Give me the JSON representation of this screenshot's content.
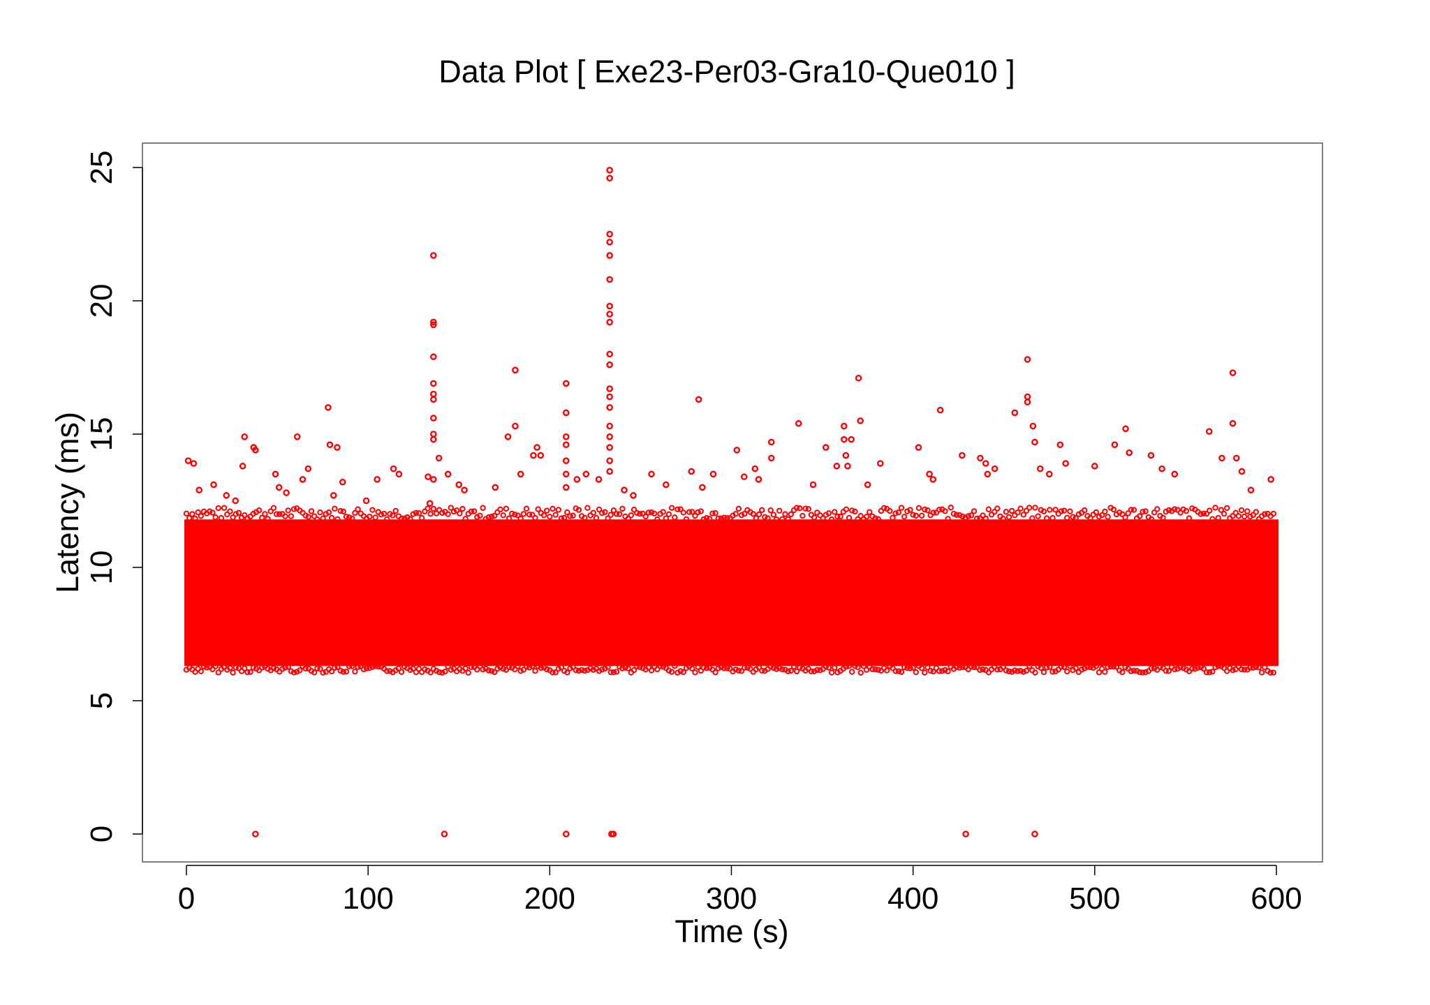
{
  "colors": {
    "point": "#ff0000",
    "axis": "#000000",
    "frame": "#555555",
    "background": "#ffffff"
  },
  "chart_data": {
    "type": "scatter",
    "title": "Data Plot [ Exe23-Per03-Gra10-Que010 ]",
    "xlabel": "Time (s)",
    "ylabel": "Latency (ms)",
    "xlim": [
      0,
      600
    ],
    "ylim": [
      0,
      25
    ],
    "x_ticks": [
      0,
      100,
      200,
      300,
      400,
      500,
      600
    ],
    "x_tick_labels": [
      "0",
      "100",
      "200",
      "300",
      "400",
      "500",
      "600"
    ],
    "y_ticks": [
      0,
      5,
      10,
      15,
      20,
      25
    ],
    "y_tick_labels": [
      "0",
      "5",
      "10",
      "15",
      "20",
      "25"
    ],
    "grid": false,
    "legend": "none",
    "marker": "open-circle",
    "series": [
      {
        "color": "#ff0000",
        "dense_band": {
          "x_range": [
            0,
            600
          ],
          "y_range": [
            6.3,
            11.8
          ]
        },
        "points": [
          [
            1,
            14.0
          ],
          [
            4,
            13.9
          ],
          [
            7,
            12.9
          ],
          [
            15,
            13.1
          ],
          [
            22,
            12.7
          ],
          [
            27,
            12.5
          ],
          [
            31,
            13.8
          ],
          [
            32,
            14.9
          ],
          [
            37,
            14.5
          ],
          [
            38,
            14.4
          ],
          [
            49,
            13.5
          ],
          [
            51,
            13.0
          ],
          [
            55,
            12.8
          ],
          [
            61,
            14.9
          ],
          [
            64,
            13.3
          ],
          [
            67,
            13.7
          ],
          [
            78,
            16.0
          ],
          [
            79,
            14.6
          ],
          [
            81,
            12.7
          ],
          [
            83,
            14.5
          ],
          [
            86,
            13.2
          ],
          [
            99,
            12.5
          ],
          [
            105,
            13.3
          ],
          [
            114,
            13.7
          ],
          [
            117,
            13.5
          ],
          [
            133,
            13.4
          ],
          [
            134,
            12.4
          ],
          [
            136,
            21.7
          ],
          [
            136,
            19.2
          ],
          [
            136,
            19.1
          ],
          [
            136,
            17.9
          ],
          [
            136,
            16.9
          ],
          [
            136,
            16.5
          ],
          [
            136,
            16.3
          ],
          [
            136,
            15.6
          ],
          [
            136,
            15.0
          ],
          [
            136,
            14.8
          ],
          [
            136,
            13.3
          ],
          [
            139,
            14.1
          ],
          [
            144,
            13.5
          ],
          [
            150,
            13.1
          ],
          [
            153,
            12.9
          ],
          [
            170,
            13.0
          ],
          [
            177,
            14.9
          ],
          [
            181,
            17.4
          ],
          [
            181,
            15.3
          ],
          [
            184,
            13.5
          ],
          [
            191,
            14.2
          ],
          [
            193,
            14.5
          ],
          [
            195,
            14.2
          ],
          [
            209,
            16.9
          ],
          [
            209,
            15.8
          ],
          [
            209,
            14.9
          ],
          [
            209,
            14.6
          ],
          [
            209,
            14.0
          ],
          [
            209,
            13.5
          ],
          [
            209,
            13.0
          ],
          [
            215,
            13.3
          ],
          [
            220,
            13.5
          ],
          [
            227,
            13.3
          ],
          [
            233,
            24.9
          ],
          [
            233,
            24.6
          ],
          [
            233,
            22.5
          ],
          [
            233,
            22.2
          ],
          [
            233,
            21.7
          ],
          [
            233,
            20.8
          ],
          [
            233,
            19.8
          ],
          [
            233,
            19.5
          ],
          [
            233,
            19.2
          ],
          [
            233,
            18.0
          ],
          [
            233,
            17.6
          ],
          [
            233,
            16.7
          ],
          [
            233,
            16.4
          ],
          [
            233,
            16.0
          ],
          [
            233,
            15.3
          ],
          [
            233,
            14.9
          ],
          [
            233,
            14.5
          ],
          [
            233,
            14.0
          ],
          [
            233,
            13.6
          ],
          [
            241,
            12.9
          ],
          [
            246,
            12.7
          ],
          [
            256,
            13.5
          ],
          [
            264,
            13.1
          ],
          [
            278,
            13.6
          ],
          [
            282,
            16.3
          ],
          [
            284,
            13.0
          ],
          [
            290,
            13.5
          ],
          [
            303,
            14.4
          ],
          [
            307,
            13.4
          ],
          [
            313,
            13.7
          ],
          [
            315,
            13.3
          ],
          [
            322,
            14.7
          ],
          [
            322,
            14.1
          ],
          [
            337,
            15.4
          ],
          [
            345,
            13.1
          ],
          [
            352,
            14.5
          ],
          [
            358,
            13.8
          ],
          [
            362,
            15.3
          ],
          [
            362,
            14.8
          ],
          [
            363,
            14.2
          ],
          [
            364,
            13.8
          ],
          [
            366,
            14.8
          ],
          [
            370,
            17.1
          ],
          [
            371,
            15.5
          ],
          [
            375,
            13.1
          ],
          [
            382,
            13.9
          ],
          [
            403,
            14.5
          ],
          [
            409,
            13.5
          ],
          [
            411,
            13.3
          ],
          [
            415,
            15.9
          ],
          [
            427,
            14.2
          ],
          [
            437,
            14.1
          ],
          [
            440,
            13.9
          ],
          [
            441,
            13.5
          ],
          [
            445,
            13.7
          ],
          [
            456,
            15.8
          ],
          [
            463,
            17.8
          ],
          [
            463,
            16.4
          ],
          [
            463,
            16.2
          ],
          [
            466,
            15.3
          ],
          [
            467,
            14.7
          ],
          [
            470,
            13.7
          ],
          [
            475,
            13.5
          ],
          [
            481,
            14.6
          ],
          [
            484,
            13.9
          ],
          [
            500,
            13.8
          ],
          [
            511,
            14.6
          ],
          [
            517,
            15.2
          ],
          [
            519,
            14.3
          ],
          [
            531,
            14.2
          ],
          [
            537,
            13.7
          ],
          [
            544,
            13.5
          ],
          [
            563,
            15.1
          ],
          [
            570,
            14.1
          ],
          [
            576,
            17.3
          ],
          [
            576,
            15.4
          ],
          [
            578,
            14.1
          ],
          [
            581,
            13.6
          ],
          [
            586,
            12.9
          ],
          [
            597,
            13.3
          ],
          [
            38,
            0
          ],
          [
            142,
            0
          ],
          [
            209,
            0
          ],
          [
            234,
            0
          ],
          [
            235,
            0
          ],
          [
            429,
            0
          ],
          [
            467,
            0
          ]
        ]
      }
    ]
  }
}
